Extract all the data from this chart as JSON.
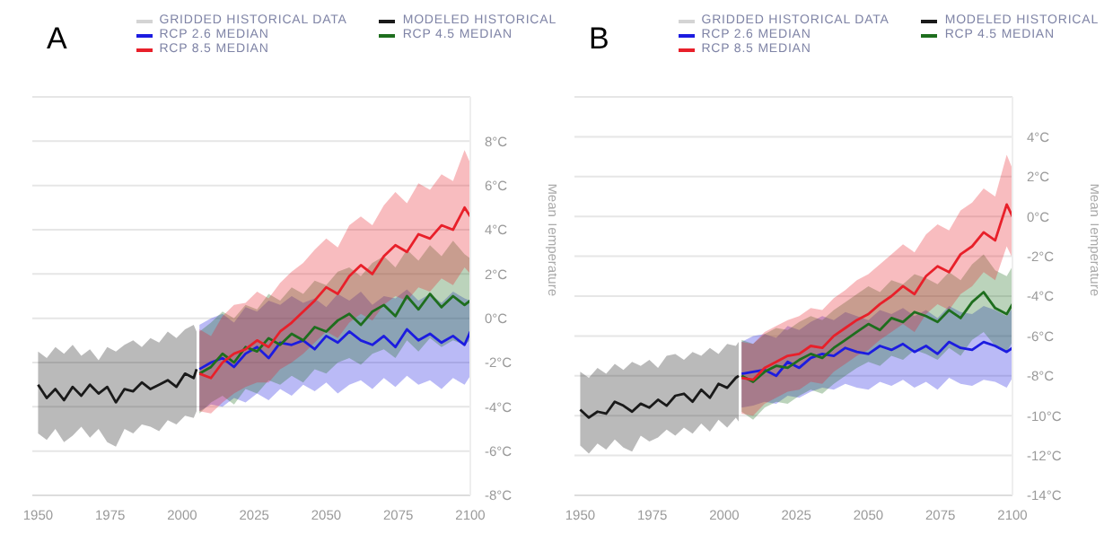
{
  "chart_data": [
    {
      "type": "line",
      "title": "A",
      "ylabel": "Mean Temperature",
      "legend": "top",
      "grid": "y",
      "xlim": [
        1948,
        2100
      ],
      "xticks": [
        1950,
        1975,
        2000,
        2025,
        2050,
        2075,
        2100
      ],
      "ylim": [
        -8,
        10
      ],
      "yticks": [
        {
          "value": -8,
          "label": "-8°C"
        },
        {
          "value": -6,
          "label": "-6°C"
        },
        {
          "value": -4,
          "label": "-4°C"
        },
        {
          "value": -2,
          "label": "-2°C"
        },
        {
          "value": 0,
          "label": "0°C"
        },
        {
          "value": 2,
          "label": "2°C"
        },
        {
          "value": 4,
          "label": "4°C"
        },
        {
          "value": 6,
          "label": "6°C"
        },
        {
          "value": 8,
          "label": "8°C"
        },
        {
          "value": 10,
          "label": null
        }
      ],
      "series": [
        {
          "name": "GRIDDED HISTORICAL DATA",
          "color": "#d4d4d4"
        },
        {
          "name": "MODELED HISTORICAL",
          "color": "#1a1a1a",
          "x": [
            1950,
            1953,
            1956,
            1959,
            1962,
            1965,
            1968,
            1971,
            1974,
            1977,
            1980,
            1983,
            1986,
            1989,
            1992,
            1995,
            1998,
            2001,
            2004,
            2005
          ],
          "values": [
            -3.0,
            -3.6,
            -3.2,
            -3.7,
            -3.1,
            -3.5,
            -3.0,
            -3.4,
            -3.1,
            -3.8,
            -3.2,
            -3.3,
            -2.9,
            -3.2,
            -3.0,
            -2.8,
            -3.1,
            -2.5,
            -2.7,
            -2.3
          ],
          "lower": [
            -5.2,
            -5.5,
            -5.0,
            -5.6,
            -5.3,
            -4.9,
            -5.4,
            -5.0,
            -5.6,
            -5.8,
            -5.0,
            -5.2,
            -4.8,
            -4.9,
            -5.1,
            -4.6,
            -4.8,
            -4.4,
            -4.5,
            -4.2
          ],
          "upper": [
            -1.5,
            -1.8,
            -1.3,
            -1.6,
            -1.2,
            -1.7,
            -1.4,
            -1.9,
            -1.3,
            -1.5,
            -1.2,
            -1.0,
            -1.3,
            -0.9,
            -1.1,
            -0.6,
            -0.9,
            -0.5,
            -0.3,
            -0.6
          ]
        },
        {
          "name": "RCP 2.6 MEDIAN",
          "color": "#1c1ce0",
          "x": [
            2006,
            2010,
            2014,
            2018,
            2022,
            2026,
            2030,
            2034,
            2038,
            2042,
            2046,
            2050,
            2054,
            2058,
            2062,
            2066,
            2070,
            2074,
            2078,
            2082,
            2086,
            2090,
            2094,
            2098,
            2100
          ],
          "values": [
            -2.3,
            -2.0,
            -1.8,
            -2.2,
            -1.6,
            -1.3,
            -1.8,
            -1.1,
            -1.2,
            -1.0,
            -1.4,
            -0.8,
            -1.1,
            -0.6,
            -1.0,
            -1.2,
            -0.8,
            -1.3,
            -0.5,
            -1.0,
            -0.7,
            -1.1,
            -0.8,
            -1.2,
            -0.6
          ],
          "lower": [
            -4.2,
            -3.9,
            -4.0,
            -3.6,
            -3.8,
            -3.4,
            -3.7,
            -3.2,
            -3.5,
            -3.0,
            -3.3,
            -2.9,
            -3.4,
            -3.0,
            -2.8,
            -3.2,
            -2.7,
            -3.1,
            -2.6,
            -3.0,
            -2.8,
            -3.2,
            -2.7,
            -3.0,
            -2.6
          ],
          "upper": [
            -0.3,
            0.0,
            0.2,
            -0.2,
            0.5,
            0.3,
            0.8,
            0.6,
            1.0,
            0.7,
            0.9,
            0.5,
            1.1,
            0.8,
            1.2,
            0.6,
            1.0,
            0.9,
            1.3,
            0.8,
            1.1,
            0.7,
            1.2,
            0.9,
            0.8
          ]
        },
        {
          "name": "RCP 4.5 MEDIAN",
          "color": "#1e6e1e",
          "x": [
            2006,
            2010,
            2014,
            2018,
            2022,
            2026,
            2030,
            2034,
            2038,
            2042,
            2046,
            2050,
            2054,
            2058,
            2062,
            2066,
            2070,
            2074,
            2078,
            2082,
            2086,
            2090,
            2094,
            2098,
            2100
          ],
          "values": [
            -2.5,
            -2.2,
            -1.6,
            -2.0,
            -1.3,
            -1.5,
            -0.9,
            -1.2,
            -0.7,
            -1.0,
            -0.4,
            -0.6,
            -0.1,
            0.2,
            -0.3,
            0.3,
            0.6,
            0.1,
            1.0,
            0.4,
            1.1,
            0.5,
            1.0,
            0.6,
            0.8
          ],
          "lower": [
            -4.3,
            -3.8,
            -3.5,
            -3.9,
            -3.2,
            -3.4,
            -2.8,
            -3.0,
            -2.6,
            -2.9,
            -2.3,
            -2.5,
            -2.0,
            -1.8,
            -2.1,
            -1.6,
            -1.4,
            -1.8,
            -1.0,
            -1.5,
            -0.9,
            -1.3,
            -1.0,
            -1.2,
            -1.0
          ],
          "upper": [
            -0.6,
            -0.2,
            0.3,
            0.0,
            0.6,
            0.4,
            1.1,
            0.8,
            1.4,
            1.1,
            1.7,
            1.5,
            2.1,
            2.3,
            1.9,
            2.5,
            2.8,
            2.3,
            3.1,
            2.6,
            3.3,
            2.8,
            3.5,
            2.9,
            2.7
          ]
        },
        {
          "name": "RCP 8.5 MEDIAN",
          "color": "#e8202a",
          "x": [
            2006,
            2010,
            2014,
            2018,
            2022,
            2026,
            2030,
            2034,
            2038,
            2042,
            2046,
            2050,
            2054,
            2058,
            2062,
            2066,
            2070,
            2074,
            2078,
            2082,
            2086,
            2090,
            2094,
            2098,
            2100
          ],
          "values": [
            -2.5,
            -2.7,
            -2.0,
            -1.6,
            -1.4,
            -1.0,
            -1.3,
            -0.6,
            -0.2,
            0.3,
            0.8,
            1.4,
            1.1,
            1.9,
            2.4,
            2.0,
            2.8,
            3.3,
            3.0,
            3.8,
            3.6,
            4.2,
            4.0,
            5.0,
            4.6
          ],
          "lower": [
            -4.2,
            -4.3,
            -3.8,
            -3.4,
            -3.1,
            -2.9,
            -2.9,
            -2.3,
            -2.0,
            -1.6,
            -1.1,
            -0.6,
            -0.9,
            -0.2,
            0.2,
            -0.1,
            0.6,
            1.0,
            0.8,
            1.4,
            1.2,
            1.8,
            1.5,
            2.3,
            2.0
          ],
          "upper": [
            -0.5,
            -0.8,
            0.1,
            0.6,
            0.7,
            1.2,
            0.9,
            1.6,
            2.1,
            2.5,
            3.1,
            3.6,
            3.2,
            4.2,
            4.6,
            4.2,
            5.1,
            5.7,
            5.2,
            6.1,
            5.8,
            6.5,
            6.2,
            7.6,
            7.0
          ]
        }
      ]
    },
    {
      "type": "line",
      "title": "B",
      "ylabel": "Mean Temperature",
      "legend": "top",
      "grid": "y",
      "xlim": [
        1948,
        2100
      ],
      "xticks": [
        1950,
        1975,
        2000,
        2025,
        2050,
        2075,
        2100
      ],
      "ylim": [
        -14,
        6
      ],
      "yticks": [
        {
          "value": -14,
          "label": "-14°C"
        },
        {
          "value": -12,
          "label": "-12°C"
        },
        {
          "value": -10,
          "label": "-10°C"
        },
        {
          "value": -8,
          "label": "-8°C"
        },
        {
          "value": -6,
          "label": "-6°C"
        },
        {
          "value": -4,
          "label": "-4°C"
        },
        {
          "value": -2,
          "label": "-2°C"
        },
        {
          "value": 0,
          "label": "0°C"
        },
        {
          "value": 2,
          "label": "2°C"
        },
        {
          "value": 4,
          "label": "4°C"
        },
        {
          "value": 6,
          "label": null
        }
      ],
      "series": [
        {
          "name": "GRIDDED HISTORICAL DATA",
          "color": "#d4d4d4"
        },
        {
          "name": "MODELED HISTORICAL",
          "color": "#1a1a1a",
          "x": [
            1950,
            1953,
            1956,
            1959,
            1962,
            1965,
            1968,
            1971,
            1974,
            1977,
            1980,
            1983,
            1986,
            1989,
            1992,
            1995,
            1998,
            2001,
            2004,
            2005
          ],
          "values": [
            -9.7,
            -10.1,
            -9.8,
            -9.9,
            -9.3,
            -9.5,
            -9.8,
            -9.4,
            -9.6,
            -9.2,
            -9.5,
            -9.0,
            -8.9,
            -9.3,
            -8.7,
            -9.1,
            -8.4,
            -8.6,
            -8.1,
            -8.0
          ],
          "lower": [
            -11.5,
            -11.9,
            -11.4,
            -11.7,
            -11.2,
            -11.6,
            -11.8,
            -11.0,
            -11.3,
            -11.1,
            -10.7,
            -11.0,
            -10.6,
            -10.9,
            -10.4,
            -10.8,
            -10.2,
            -10.6,
            -10.1,
            -10.3
          ],
          "upper": [
            -7.8,
            -8.1,
            -7.6,
            -7.9,
            -7.4,
            -7.7,
            -7.3,
            -7.5,
            -7.2,
            -7.6,
            -7.0,
            -6.9,
            -7.2,
            -6.8,
            -7.0,
            -6.6,
            -6.9,
            -6.4,
            -6.5,
            -6.3
          ]
        },
        {
          "name": "RCP 2.6 MEDIAN",
          "color": "#1c1ce0",
          "x": [
            2006,
            2010,
            2014,
            2018,
            2022,
            2026,
            2030,
            2034,
            2038,
            2042,
            2046,
            2050,
            2054,
            2058,
            2062,
            2066,
            2070,
            2074,
            2078,
            2082,
            2086,
            2090,
            2094,
            2098,
            2100
          ],
          "values": [
            -7.9,
            -7.8,
            -7.7,
            -8.0,
            -7.3,
            -7.6,
            -7.1,
            -6.9,
            -7.0,
            -6.6,
            -6.8,
            -6.9,
            -6.5,
            -6.7,
            -6.4,
            -6.8,
            -6.5,
            -6.9,
            -6.3,
            -6.6,
            -6.7,
            -6.3,
            -6.5,
            -6.8,
            -6.6
          ],
          "lower": [
            -9.6,
            -9.5,
            -9.3,
            -9.4,
            -9.0,
            -9.1,
            -8.8,
            -8.6,
            -8.7,
            -8.4,
            -8.6,
            -8.7,
            -8.3,
            -8.5,
            -8.2,
            -8.6,
            -8.3,
            -8.7,
            -8.1,
            -8.4,
            -8.5,
            -8.2,
            -8.3,
            -8.6,
            -8.1
          ],
          "upper": [
            -6.3,
            -6.0,
            -5.9,
            -6.1,
            -5.5,
            -5.7,
            -5.3,
            -5.0,
            -5.2,
            -4.8,
            -5.0,
            -5.2,
            -4.7,
            -4.9,
            -4.6,
            -5.0,
            -4.7,
            -5.1,
            -4.5,
            -4.8,
            -4.9,
            -4.5,
            -4.7,
            -5.0,
            -4.6
          ]
        },
        {
          "name": "RCP 4.5 MEDIAN",
          "color": "#1e6e1e",
          "x": [
            2006,
            2010,
            2014,
            2018,
            2022,
            2026,
            2030,
            2034,
            2038,
            2042,
            2046,
            2050,
            2054,
            2058,
            2062,
            2066,
            2070,
            2074,
            2078,
            2082,
            2086,
            2090,
            2094,
            2098,
            2100
          ],
          "values": [
            -8.0,
            -8.3,
            -7.8,
            -7.5,
            -7.6,
            -7.2,
            -6.9,
            -7.1,
            -6.6,
            -6.2,
            -5.8,
            -5.4,
            -5.7,
            -5.1,
            -5.3,
            -4.8,
            -5.0,
            -5.3,
            -4.7,
            -5.1,
            -4.3,
            -3.8,
            -4.6,
            -4.9,
            -4.4
          ],
          "lower": [
            -9.8,
            -10.2,
            -9.6,
            -9.3,
            -9.4,
            -9.0,
            -8.7,
            -8.9,
            -8.4,
            -8.0,
            -7.6,
            -7.3,
            -7.5,
            -7.0,
            -7.2,
            -6.7,
            -6.9,
            -7.2,
            -6.6,
            -7.0,
            -6.2,
            -5.8,
            -6.5,
            -6.8,
            -6.3
          ],
          "upper": [
            -6.2,
            -6.4,
            -5.9,
            -5.6,
            -5.7,
            -5.3,
            -5.0,
            -5.2,
            -4.7,
            -4.3,
            -3.9,
            -3.5,
            -3.8,
            -3.2,
            -3.4,
            -2.9,
            -3.1,
            -3.4,
            -2.8,
            -3.2,
            -2.4,
            -1.9,
            -2.7,
            -3.0,
            -2.5
          ]
        },
        {
          "name": "RCP 8.5 MEDIAN",
          "color": "#e8202a",
          "x": [
            2006,
            2010,
            2014,
            2018,
            2022,
            2026,
            2030,
            2034,
            2038,
            2042,
            2046,
            2050,
            2054,
            2058,
            2062,
            2066,
            2070,
            2074,
            2078,
            2082,
            2086,
            2090,
            2094,
            2098,
            2100
          ],
          "values": [
            -8.1,
            -8.2,
            -7.6,
            -7.3,
            -7.0,
            -6.9,
            -6.5,
            -6.6,
            -6.0,
            -5.6,
            -5.2,
            -4.9,
            -4.4,
            -4.0,
            -3.5,
            -3.9,
            -3.0,
            -2.5,
            -2.8,
            -1.9,
            -1.5,
            -0.8,
            -1.2,
            0.6,
            0.0
          ],
          "lower": [
            -9.9,
            -10.0,
            -9.4,
            -9.1,
            -8.8,
            -8.7,
            -8.3,
            -8.4,
            -7.8,
            -7.4,
            -7.0,
            -6.7,
            -6.2,
            -5.8,
            -5.4,
            -5.8,
            -4.9,
            -4.4,
            -4.7,
            -3.9,
            -3.5,
            -2.8,
            -3.2,
            -1.5,
            -2.1
          ],
          "upper": [
            -6.3,
            -6.4,
            -5.8,
            -5.5,
            -5.2,
            -5.0,
            -4.6,
            -4.7,
            -4.1,
            -3.7,
            -3.2,
            -2.9,
            -2.4,
            -1.9,
            -1.4,
            -1.8,
            -0.9,
            -0.4,
            -0.7,
            0.3,
            0.7,
            1.4,
            1.0,
            3.1,
            2.4
          ]
        }
      ]
    }
  ]
}
